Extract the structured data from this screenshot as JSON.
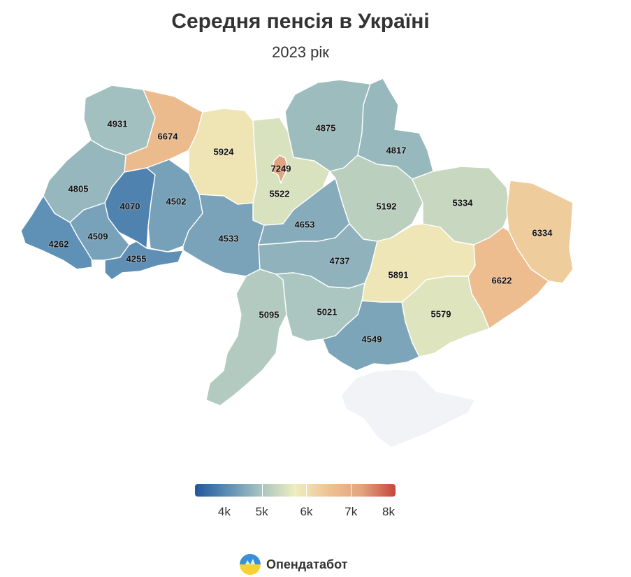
{
  "title": "Середня пенсія в Україні",
  "subtitle": "2023 рік",
  "colors": {
    "scale": [
      "#22589b",
      "#5e8fb5",
      "#a9c5c0",
      "#eeeebe",
      "#efc292",
      "#e2a37e",
      "#c6463d"
    ],
    "crimea": "#f1f3f7"
  },
  "map_data": {
    "unit": "UAH",
    "regions": [
      {
        "id": "volyn",
        "value": "4931"
      },
      {
        "id": "rivne",
        "value": "6674"
      },
      {
        "id": "zhytomyr",
        "value": "5924"
      },
      {
        "id": "kyiv-oblast",
        "value": "5522"
      },
      {
        "id": "kyiv-city",
        "value": "7249"
      },
      {
        "id": "chernihiv",
        "value": "4875"
      },
      {
        "id": "sumy",
        "value": "4817"
      },
      {
        "id": "lviv",
        "value": "4805"
      },
      {
        "id": "ternopil",
        "value": "4070"
      },
      {
        "id": "khmelnytskyi",
        "value": "4502"
      },
      {
        "id": "zakarpattia",
        "value": "4262"
      },
      {
        "id": "ivano-frankivsk",
        "value": "4509"
      },
      {
        "id": "chernivtsi",
        "value": "4255"
      },
      {
        "id": "vinnytsia",
        "value": "4533"
      },
      {
        "id": "cherkasy",
        "value": "4653"
      },
      {
        "id": "poltava",
        "value": "5192"
      },
      {
        "id": "kharkiv",
        "value": "5334"
      },
      {
        "id": "luhansk",
        "value": "6334"
      },
      {
        "id": "kirovohrad",
        "value": "4737"
      },
      {
        "id": "dnipropetrovsk",
        "value": "5891"
      },
      {
        "id": "donetsk",
        "value": "6622"
      },
      {
        "id": "zaporizhzhia",
        "value": "5579"
      },
      {
        "id": "odesa",
        "value": "5095"
      },
      {
        "id": "mykolaiv",
        "value": "5021"
      },
      {
        "id": "kherson",
        "value": "4549"
      },
      {
        "id": "crimea",
        "value": ""
      }
    ]
  },
  "legend": {
    "min": 3500,
    "max": 8000,
    "ticks": [
      {
        "label": "4k",
        "value": 4000
      },
      {
        "label": "5k",
        "value": 5000
      },
      {
        "label": "6k",
        "value": 6000
      },
      {
        "label": "7k",
        "value": 7000
      },
      {
        "label": "8k",
        "value": 8000
      }
    ]
  },
  "brand": {
    "name": "Опендатабот"
  }
}
